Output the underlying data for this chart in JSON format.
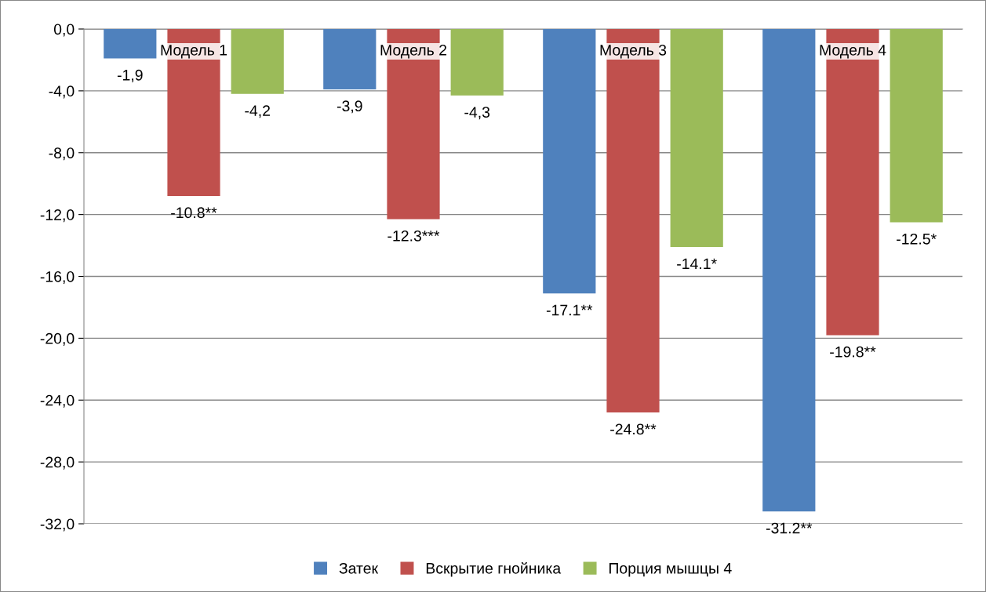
{
  "chart_data": {
    "type": "bar",
    "categories": [
      "Модель 1",
      "Модель 2",
      "Модель 3",
      "Модель 4"
    ],
    "series": [
      {
        "name": "Затек",
        "color": "#4f81bd",
        "values": [
          -1.9,
          -3.9,
          -17.1,
          -31.2
        ],
        "value_labels": [
          "-1,9",
          "-3,9",
          "-17.1**",
          "-31.2**"
        ]
      },
      {
        "name": "Вскрытие гнойника",
        "color": "#c0504d",
        "values": [
          -10.8,
          -12.3,
          -24.8,
          -19.8
        ],
        "value_labels": [
          "-10.8**",
          "-12.3***",
          "-24.8**",
          "-19.8**"
        ]
      },
      {
        "name": "Порция мышцы 4",
        "color": "#9bbb59",
        "values": [
          -4.2,
          -4.3,
          -14.1,
          -12.5
        ],
        "value_labels": [
          "-4,2",
          "-4,3",
          "-14.1*",
          "-12.5*"
        ]
      }
    ],
    "ylim": [
      -32,
      0
    ],
    "yticks": [
      {
        "value": 0,
        "label": "0,0"
      },
      {
        "value": -4,
        "label": "-4,0"
      },
      {
        "value": -8,
        "label": "-8,0"
      },
      {
        "value": -12,
        "label": "-12,0"
      },
      {
        "value": -16,
        "label": "-16,0"
      },
      {
        "value": -20,
        "label": "-20,0"
      },
      {
        "value": -24,
        "label": "-24,0"
      },
      {
        "value": -28,
        "label": "-28,0"
      },
      {
        "value": -32,
        "label": "-32,0"
      }
    ],
    "grid": "y",
    "legend": "bottom"
  }
}
